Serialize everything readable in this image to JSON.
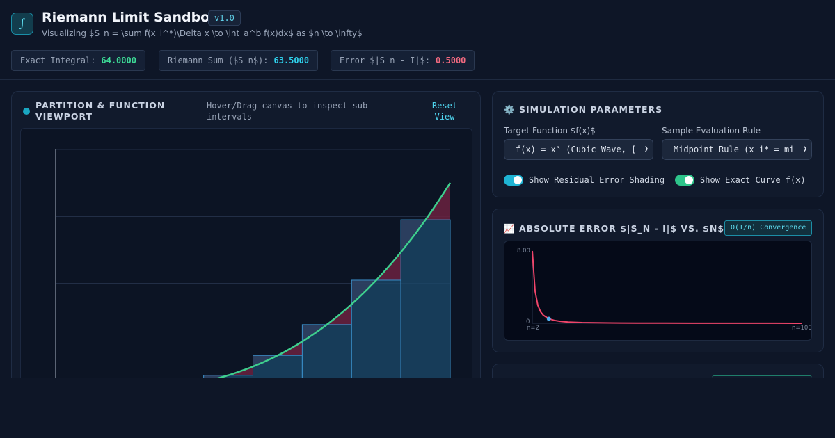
{
  "header": {
    "logo_glyph": "∫",
    "title": "Riemann Limit Sandbox",
    "version": "v1.0",
    "subtitle": "Visualizing $S_n = \\sum f(x_i^*)\\Delta x \\to \\int_a^b f(x)dx$ as $n \\to \\infty$"
  },
  "stats": [
    {
      "label": "Exact Integral:",
      "value": "64.0000",
      "color": "#3ddc97"
    },
    {
      "label": "Riemann Sum ($S_n$):",
      "value": "63.5000",
      "color": "#2fd3ee"
    },
    {
      "label": "Error $|S_n - I|$:",
      "value": "0.5000",
      "color": "#f36a80"
    }
  ],
  "viewport": {
    "title": "Partition & Function Viewport",
    "hint": "Hover/Drag canvas to inspect sub-intervals",
    "reset_label": "Reset View",
    "icon": "status-dot-icon"
  },
  "params": {
    "icon": "⚙️",
    "title": "Simulation Parameters",
    "function_label": "Target Function $f(x)$",
    "function_value": "f(x) = x³ (Cubic Wave, [",
    "rule_label": "Sample Evaluation Rule",
    "rule_value": "Midpoint Rule (x_i* = mi",
    "toggle_residual_label": "Show Residual Error Shading",
    "toggle_curve_label": "Show Exact Curve f(x)",
    "toggle_residual_on": true,
    "toggle_curve_on": true
  },
  "error_panel": {
    "icon": "📈",
    "title": "Absolute Error $|S_N - I|$ vs. $N$",
    "badge": "O(1/n) Convergence"
  },
  "colors": {
    "curve": "#3ecf8e",
    "rect_fill": "#1b4a6b",
    "rect_stroke": "#3a8fc9",
    "residual": "#6b2140",
    "error_line": "#f0456a",
    "error_marker": "#4fb0f0"
  },
  "chart_data": {
    "type": "line",
    "title": "",
    "xlabel": "",
    "ylabel": "",
    "x_tick_labels": [
      "n=2",
      "n=100"
    ],
    "y_tick_labels": [
      "0",
      "8.00"
    ],
    "xlim": [
      2,
      100
    ],
    "ylim": [
      0,
      8
    ],
    "x": [
      2,
      3,
      4,
      5,
      6,
      8,
      10,
      12,
      15,
      20,
      25,
      30,
      40,
      50,
      60,
      70,
      80,
      90,
      100
    ],
    "series": [
      {
        "values": [
          8.0,
          3.56,
          2.0,
          1.28,
          0.89,
          0.5,
          0.32,
          0.22,
          0.14,
          0.08,
          0.05,
          0.036,
          0.02,
          0.013,
          0.009,
          0.007,
          0.005,
          0.004,
          0.003
        ]
      }
    ],
    "highlight": {
      "x": 8,
      "y": 0.5
    }
  }
}
